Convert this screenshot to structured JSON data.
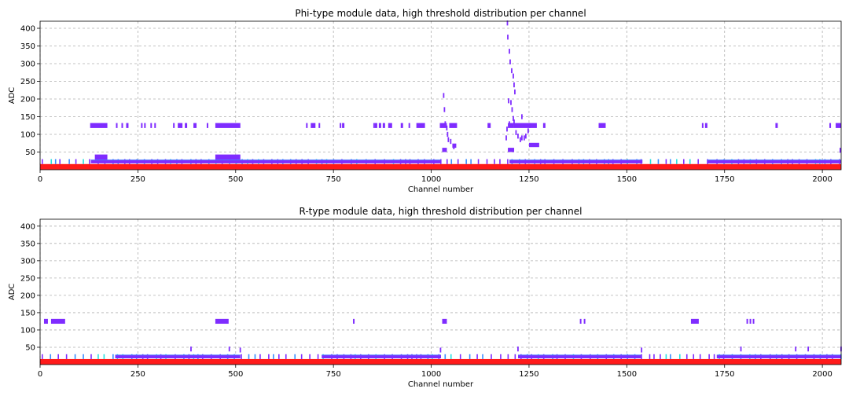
{
  "chart_data": [
    {
      "type": "heatmap",
      "title": "Phi-type module data, high threshold distribution per channel",
      "xlabel": "Channel number",
      "ylabel": "ADC",
      "xlim": [
        0,
        2048
      ],
      "ylim": [
        0,
        420
      ],
      "xticks": [
        0,
        250,
        500,
        750,
        1000,
        1250,
        1500,
        1750,
        2000
      ],
      "yticks": [
        50,
        100,
        150,
        200,
        250,
        300,
        350,
        400
      ],
      "grid": true,
      "colors": {
        "low": "#ff1a1a",
        "band": "#7f2cff",
        "mid": "#3a8cff",
        "hi": "#29e0e0"
      },
      "base_band": {
        "y0": 0,
        "y1": 16
      },
      "main_band_segments": [
        {
          "x0": 130,
          "x1": 1025,
          "y0": 18,
          "y1": 28
        },
        {
          "x0": 1200,
          "x1": 1540,
          "y0": 18,
          "y1": 28
        },
        {
          "x0": 1705,
          "x1": 2048,
          "y0": 18,
          "y1": 28
        },
        {
          "x0": 140,
          "x1": 172,
          "y0": 28,
          "y1": 43
        },
        {
          "x0": 448,
          "x1": 512,
          "y0": 28,
          "y1": 43
        }
      ],
      "cluster_125": [
        [
          128,
          172
        ],
        [
          194,
          198
        ],
        [
          208,
          212
        ],
        [
          220,
          226
        ],
        [
          258,
          262
        ],
        [
          266,
          270
        ],
        [
          282,
          286
        ],
        [
          292,
          296
        ],
        [
          340,
          344
        ],
        [
          352,
          364
        ],
        [
          370,
          376
        ],
        [
          392,
          400
        ],
        [
          426,
          430
        ],
        [
          448,
          512
        ],
        [
          680,
          684
        ],
        [
          692,
          704
        ],
        [
          712,
          716
        ],
        [
          766,
          770
        ],
        [
          772,
          778
        ],
        [
          852,
          856
        ],
        [
          856,
          862
        ],
        [
          866,
          872
        ],
        [
          876,
          882
        ],
        [
          890,
          900
        ],
        [
          922,
          928
        ],
        [
          942,
          946
        ],
        [
          962,
          984
        ],
        [
          1022,
          1026
        ],
        [
          1026,
          1040
        ],
        [
          1046,
          1066
        ],
        [
          1144,
          1152
        ],
        [
          1196,
          1210
        ],
        [
          1210,
          1270
        ],
        [
          1286,
          1292
        ],
        [
          1428,
          1446
        ],
        [
          1692,
          1696
        ],
        [
          1700,
          1706
        ],
        [
          1880,
          1886
        ],
        [
          2018,
          2022
        ],
        [
          2034,
          2048
        ]
      ],
      "spike_points": [
        [
          1193,
          415
        ],
        [
          1194,
          375
        ],
        [
          1198,
          335
        ],
        [
          1200,
          305
        ],
        [
          1204,
          280
        ],
        [
          1208,
          265
        ],
        [
          1210,
          240
        ],
        [
          1212,
          220
        ],
        [
          1196,
          195
        ],
        [
          1202,
          190
        ],
        [
          1205,
          170
        ],
        [
          1208,
          145
        ],
        [
          1210,
          135
        ],
        [
          1215,
          105
        ],
        [
          1220,
          95
        ],
        [
          1226,
          85
        ],
        [
          1230,
          90
        ],
        [
          1236,
          90
        ],
        [
          1240,
          95
        ],
        [
          1246,
          110
        ],
        [
          1250,
          125
        ],
        [
          1230,
          150
        ],
        [
          1030,
          210
        ],
        [
          1032,
          170
        ],
        [
          1034,
          130
        ],
        [
          1038,
          118
        ],
        [
          1040,
          100
        ],
        [
          1042,
          85
        ],
        [
          1048,
          80
        ],
        [
          1056,
          65
        ],
        [
          1190,
          90
        ],
        [
          1192,
          115
        ],
        [
          1198,
          130
        ]
      ],
      "side_blocks": [
        {
          "x0": 1028,
          "x1": 1040,
          "y0": 50,
          "y1": 62
        },
        {
          "x0": 1054,
          "x1": 1064,
          "y0": 62,
          "y1": 74
        },
        {
          "x0": 1196,
          "x1": 1212,
          "y0": 50,
          "y1": 62
        },
        {
          "x0": 1250,
          "x1": 1276,
          "y0": 64,
          "y1": 76
        },
        {
          "x0": 2044,
          "x1": 2048,
          "y0": 48,
          "y1": 62
        }
      ]
    },
    {
      "type": "heatmap",
      "title": "R-type module data, high threshold distribution per channel",
      "xlabel": "Channel number",
      "ylabel": "ADC",
      "xlim": [
        0,
        2048
      ],
      "ylim": [
        0,
        420
      ],
      "xticks": [
        0,
        250,
        500,
        750,
        1000,
        1250,
        1500,
        1750,
        2000
      ],
      "yticks": [
        50,
        100,
        150,
        200,
        250,
        300,
        350,
        400
      ],
      "grid": true,
      "colors": {
        "low": "#ff1a1a",
        "band": "#7f2cff",
        "mid": "#3a8cff",
        "hi": "#29e0e0"
      },
      "base_band": {
        "y0": 0,
        "y1": 16
      },
      "main_band_segments": [
        {
          "x0": 192,
          "x1": 512,
          "y0": 18,
          "y1": 28
        },
        {
          "x0": 720,
          "x1": 1025,
          "y0": 18,
          "y1": 28
        },
        {
          "x0": 1222,
          "x1": 1536,
          "y0": 18,
          "y1": 28
        },
        {
          "x0": 1730,
          "x1": 2048,
          "y0": 18,
          "y1": 28
        }
      ],
      "cluster_125": [
        [
          10,
          20
        ],
        [
          28,
          64
        ],
        [
          448,
          482
        ],
        [
          800,
          804
        ],
        [
          1028,
          1040
        ],
        [
          1380,
          1384
        ],
        [
          1390,
          1394
        ],
        [
          1664,
          1684
        ],
        [
          1806,
          1810
        ],
        [
          1814,
          1818
        ],
        [
          1822,
          1826
        ]
      ],
      "spike_points": [
        [
          384,
          45
        ],
        [
          482,
          45
        ],
        [
          510,
          42
        ],
        [
          1022,
          42
        ],
        [
          1220,
          45
        ],
        [
          1536,
          42
        ],
        [
          1790,
          45
        ],
        [
          1930,
          45
        ],
        [
          1962,
          45
        ],
        [
          2046,
          45
        ]
      ],
      "side_blocks": []
    }
  ]
}
